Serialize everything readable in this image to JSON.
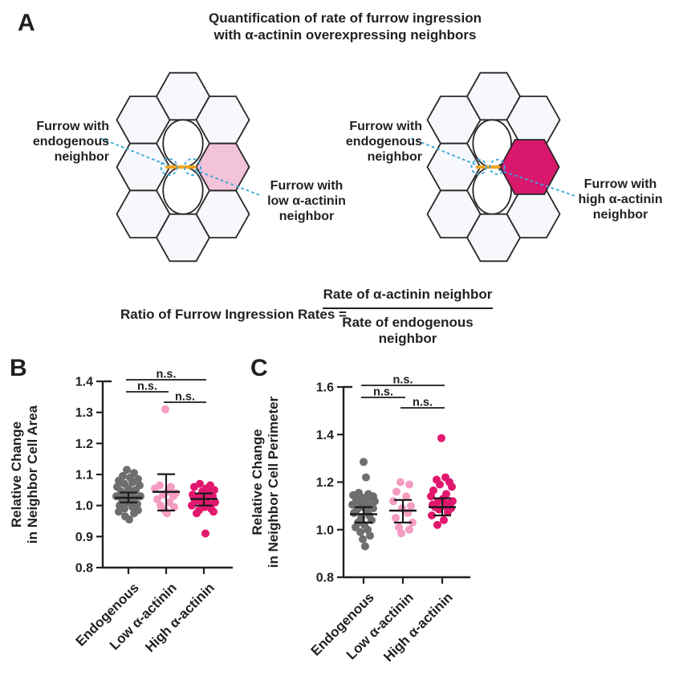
{
  "panel_a": {
    "label": "A",
    "title_line1": "Quantification of rate of furrow ingression",
    "title_line2": "with α-actinin overexpressing neighbors",
    "colors": {
      "cell_fill": "#f6f8fb",
      "cell_stroke": "#2d282a",
      "furrow": "#f2a51f",
      "callout": "#39a7d8"
    },
    "left_diagram": {
      "highlight_color": "#f3c3da",
      "left_callout": [
        "Furrow with",
        "endogenous",
        "neighbor"
      ],
      "right_callout": [
        "Furrow with",
        "low α-actinin",
        "neighbor"
      ]
    },
    "right_diagram": {
      "highlight_color": "#d8176d",
      "left_callout": [
        "Furrow with",
        "endogenous",
        "neighbor"
      ],
      "right_callout": [
        "Furrow with",
        "high α-actinin",
        "neighbor"
      ]
    },
    "formula": {
      "lhs": "Ratio of Furrow Ingression Rates =",
      "numerator": "Rate of α-actinin neighbor",
      "denominator": "Rate of endogenous neighbor"
    }
  },
  "panel_b_label": "B",
  "panel_c_label": "C",
  "chart_data": [
    {
      "panel": "B",
      "type": "dot-plot",
      "ylabel_line1": "Relative Change",
      "ylabel_line2": "in Neighbor Cell Area",
      "ylim": [
        0.8,
        1.4
      ],
      "yticks": [
        "0.8",
        "0.9",
        "1.0",
        "1.1",
        "1.2",
        "1.3",
        "1.4"
      ],
      "categories": [
        "Endogenous",
        "Low α-actinin",
        "High α-actinin"
      ],
      "groups": [
        {
          "name": "Endogenous",
          "color": "#6e6e6e",
          "mean": 1.025,
          "ci_low": 1.01,
          "ci_high": 1.042,
          "points": [
            [
              1.115,
              -2
            ],
            [
              1.105,
              7
            ],
            [
              1.095,
              -7
            ],
            [
              1.09,
              2
            ],
            [
              1.085,
              12
            ],
            [
              1.08,
              -12
            ],
            [
              1.075,
              5
            ],
            [
              1.07,
              -5
            ],
            [
              1.065,
              14
            ],
            [
              1.06,
              -14
            ],
            [
              1.055,
              0
            ],
            [
              1.05,
              9
            ],
            [
              1.045,
              -9
            ],
            [
              1.04,
              4
            ],
            [
              1.035,
              -4
            ],
            [
              1.03,
              15
            ],
            [
              1.03,
              -15
            ],
            [
              1.025,
              8
            ],
            [
              1.02,
              -8
            ],
            [
              1.015,
              2
            ],
            [
              1.01,
              -2
            ],
            [
              1.005,
              11
            ],
            [
              1.0,
              -11
            ],
            [
              0.995,
              5
            ],
            [
              0.99,
              -5
            ],
            [
              0.985,
              12
            ],
            [
              0.98,
              -12
            ],
            [
              0.975,
              7
            ],
            [
              0.965,
              -4
            ],
            [
              0.955,
              1
            ]
          ]
        },
        {
          "name": "Low α-actinin",
          "color": "#f49cc1",
          "mean": 1.044,
          "ci_low": 0.984,
          "ci_high": 1.101,
          "points": [
            [
              1.31,
              -1
            ],
            [
              1.065,
              -8
            ],
            [
              1.06,
              6
            ],
            [
              1.055,
              -14
            ],
            [
              1.045,
              2
            ],
            [
              1.04,
              12
            ],
            [
              1.035,
              -4
            ],
            [
              1.03,
              9
            ],
            [
              1.02,
              -11
            ],
            [
              1.01,
              4
            ],
            [
              1.0,
              -7
            ],
            [
              0.995,
              10
            ],
            [
              0.985,
              -2
            ],
            [
              0.975,
              1
            ]
          ]
        },
        {
          "name": "High α-actinin",
          "color": "#e2176e",
          "mean": 1.021,
          "ci_low": 1.0,
          "ci_high": 1.039,
          "points": [
            [
              1.07,
              -5
            ],
            [
              1.065,
              8
            ],
            [
              1.06,
              -12
            ],
            [
              1.055,
              3
            ],
            [
              1.05,
              13
            ],
            [
              1.045,
              -2
            ],
            [
              1.04,
              7
            ],
            [
              1.035,
              -14
            ],
            [
              1.03,
              0
            ],
            [
              1.03,
              11
            ],
            [
              1.025,
              -8
            ],
            [
              1.02,
              4
            ],
            [
              1.015,
              -11
            ],
            [
              1.01,
              14
            ],
            [
              1.01,
              -3
            ],
            [
              1.005,
              6
            ],
            [
              1.0,
              -15
            ],
            [
              0.995,
              1
            ],
            [
              0.99,
              9
            ],
            [
              0.985,
              -6
            ],
            [
              0.98,
              12
            ],
            [
              0.975,
              -9
            ],
            [
              0.91,
              2
            ]
          ]
        }
      ],
      "comparisons": [
        {
          "from": 0,
          "to": 2,
          "label": "n.s."
        },
        {
          "from": 0,
          "to": 1,
          "label": "n.s."
        },
        {
          "from": 1,
          "to": 2,
          "label": "n.s."
        }
      ]
    },
    {
      "panel": "C",
      "type": "dot-plot",
      "ylabel_line1": "Relative Change",
      "ylabel_line2": "in Neighbor Cell Perimeter",
      "ylim": [
        0.8,
        1.6
      ],
      "yticks": [
        "0.8",
        "1.0",
        "1.2",
        "1.4",
        "1.6"
      ],
      "categories": [
        "Endogenous",
        "Low α-actinin",
        "High α-actinin"
      ],
      "groups": [
        {
          "name": "Endogenous",
          "color": "#6e6e6e",
          "mean": 1.065,
          "ci_low": 1.03,
          "ci_high": 1.095,
          "points": [
            [
              1.285,
              0
            ],
            [
              1.22,
              3
            ],
            [
              1.155,
              -6
            ],
            [
              1.15,
              6
            ],
            [
              1.145,
              -13
            ],
            [
              1.14,
              12
            ],
            [
              1.135,
              -2
            ],
            [
              1.13,
              5
            ],
            [
              1.125,
              -9
            ],
            [
              1.12,
              14
            ],
            [
              1.115,
              -5
            ],
            [
              1.11,
              2
            ],
            [
              1.105,
              -14
            ],
            [
              1.1,
              9
            ],
            [
              1.095,
              -1
            ],
            [
              1.09,
              12
            ],
            [
              1.085,
              -8
            ],
            [
              1.08,
              4
            ],
            [
              1.07,
              -12
            ],
            [
              1.06,
              7
            ],
            [
              1.05,
              -3
            ],
            [
              1.04,
              10
            ],
            [
              1.03,
              -7
            ],
            [
              1.02,
              1
            ],
            [
              1.01,
              -10
            ],
            [
              1.0,
              5
            ],
            [
              0.99,
              -4
            ],
            [
              0.975,
              8
            ],
            [
              0.96,
              -1
            ],
            [
              0.93,
              2
            ]
          ]
        },
        {
          "name": "Low α-actinin",
          "color": "#f49cc1",
          "mean": 1.08,
          "ci_low": 1.03,
          "ci_high": 1.125,
          "points": [
            [
              1.2,
              -3
            ],
            [
              1.19,
              8
            ],
            [
              1.16,
              -8
            ],
            [
              1.14,
              4
            ],
            [
              1.12,
              -12
            ],
            [
              1.1,
              10
            ],
            [
              1.09,
              -1
            ],
            [
              1.07,
              6
            ],
            [
              1.05,
              -9
            ],
            [
              1.03,
              12
            ],
            [
              1.01,
              -5
            ],
            [
              1.0,
              8
            ],
            [
              0.985,
              -2
            ]
          ]
        },
        {
          "name": "High α-actinin",
          "color": "#e2176e",
          "mean": 1.095,
          "ci_low": 1.06,
          "ci_high": 1.132,
          "points": [
            [
              1.385,
              -1
            ],
            [
              1.22,
              4
            ],
            [
              1.21,
              -7
            ],
            [
              1.2,
              9
            ],
            [
              1.19,
              -3
            ],
            [
              1.18,
              12
            ],
            [
              1.165,
              -11
            ],
            [
              1.15,
              5
            ],
            [
              1.14,
              -14
            ],
            [
              1.13,
              1
            ],
            [
              1.12,
              13
            ],
            [
              1.115,
              -6
            ],
            [
              1.11,
              8
            ],
            [
              1.105,
              -12
            ],
            [
              1.1,
              3
            ],
            [
              1.095,
              -9
            ],
            [
              1.09,
              11
            ],
            [
              1.085,
              -4
            ],
            [
              1.075,
              7
            ],
            [
              1.06,
              -13
            ],
            [
              1.04,
              2
            ],
            [
              1.02,
              -6
            ]
          ]
        }
      ],
      "comparisons": [
        {
          "from": 0,
          "to": 2,
          "label": "n.s."
        },
        {
          "from": 0,
          "to": 1,
          "label": "n.s."
        },
        {
          "from": 1,
          "to": 2,
          "label": "n.s."
        }
      ]
    }
  ]
}
